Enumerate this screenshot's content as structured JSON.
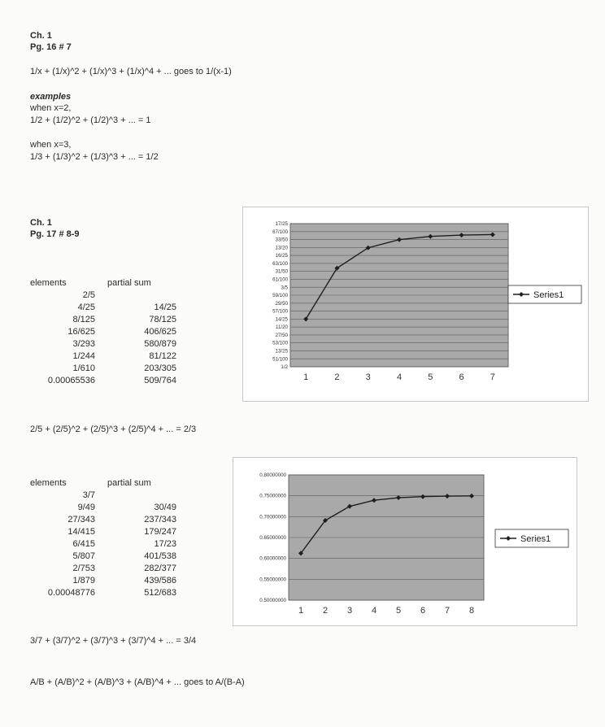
{
  "sections": [
    {
      "heading_line1": "Ch. 1",
      "heading_line2": "Pg. 16 # 7",
      "formula": "1/x + (1/x)^2 + (1/x)^3 + (1/x)^4 + ... goes to 1/(x-1)",
      "examples_label": "examples",
      "example1_line1": "when x=2,",
      "example1_line2": "1/2 + (1/2)^2 + (1/2)^3 + ... = 1",
      "example2_line1": "when x=3,",
      "example2_line2": "1/3 + (1/3)^2 + (1/3)^3 + ... = 1/2"
    },
    {
      "heading_line1": "Ch. 1",
      "heading_line2": "Pg. 17 # 8-9"
    }
  ],
  "table1": {
    "col_elements": "elements",
    "col_partial": "partial sum",
    "rows": [
      [
        "2/5",
        ""
      ],
      [
        "4/25",
        "14/25"
      ],
      [
        "8/125",
        "78/125"
      ],
      [
        "16/625",
        "406/625"
      ],
      [
        "3/293",
        "580/879"
      ],
      [
        "1/244",
        "81/122"
      ],
      [
        "1/610",
        "203/305"
      ],
      [
        "0.00065536",
        "509/764"
      ]
    ],
    "conclusion": "2/5 + (2/5)^2 + (2/5)^3 + (2/5)^4 + ... = 2/3"
  },
  "table2": {
    "col_elements": "elements",
    "col_partial": "partial sum",
    "rows": [
      [
        "3/7",
        ""
      ],
      [
        "9/49",
        "30/49"
      ],
      [
        "27/343",
        "237/343"
      ],
      [
        "14/415",
        "179/247"
      ],
      [
        "6/415",
        "17/23"
      ],
      [
        "5/807",
        "401/538"
      ],
      [
        "2/753",
        "282/377"
      ],
      [
        "1/879",
        "439/586"
      ],
      [
        "0.00048776",
        "512/683"
      ]
    ],
    "conclusion": "3/7 + (3/7)^2 + (3/7)^3 + (3/7)^4 + ... = 3/4"
  },
  "general_formula": "A/B + (A/B)^2 + (A/B)^3 + (A/B)^4 + ... goes to A/(B-A)",
  "colors": {
    "plot_bg": "#a9a9a9",
    "series": "#1e1e1e"
  },
  "chart_data": [
    {
      "type": "line",
      "categories": [
        "1",
        "2",
        "3",
        "4",
        "5",
        "6",
        "7"
      ],
      "series": [
        {
          "name": "Series1",
          "values": [
            0.56,
            0.624,
            0.6496,
            0.65984,
            0.663936,
            0.6655744,
            0.6662298
          ]
        }
      ],
      "ylim": [
        0.5,
        0.68
      ],
      "yticks": [
        0.5,
        0.51,
        0.52,
        0.53,
        0.54,
        0.55,
        0.56,
        0.57,
        0.58,
        0.59,
        0.6,
        0.61,
        0.62,
        0.63,
        0.64,
        0.65,
        0.66,
        0.67,
        0.68
      ],
      "ytick_labels": [
        "1/2",
        "51/100",
        "13/25",
        "53/100",
        "27/50",
        "11/20",
        "14/25",
        "57/100",
        "29/50",
        "59/100",
        "3/5",
        "61/100",
        "31/50",
        "63/100",
        "16/25",
        "13/20",
        "33/50",
        "67/100",
        "17/25"
      ],
      "legend": "right",
      "grid": true
    },
    {
      "type": "line",
      "categories": [
        "1",
        "2",
        "3",
        "4",
        "5",
        "6",
        "7",
        "8"
      ],
      "series": [
        {
          "name": "Series1",
          "values": [
            0.6122449,
            0.6909621,
            0.7246981,
            0.7391563,
            0.7453527,
            0.7480083,
            0.7491464,
            0.7496342
          ]
        }
      ],
      "ylim": [
        0.5,
        0.8
      ],
      "yticks": [
        0.5,
        0.55,
        0.6,
        0.65,
        0.7,
        0.75,
        0.8
      ],
      "ytick_labels": [
        "0.50000000",
        "0.55000000",
        "0.60000000",
        "0.65000000",
        "0.70000000",
        "0.75000000",
        "0.80000000"
      ],
      "legend": "right",
      "grid": true
    }
  ]
}
